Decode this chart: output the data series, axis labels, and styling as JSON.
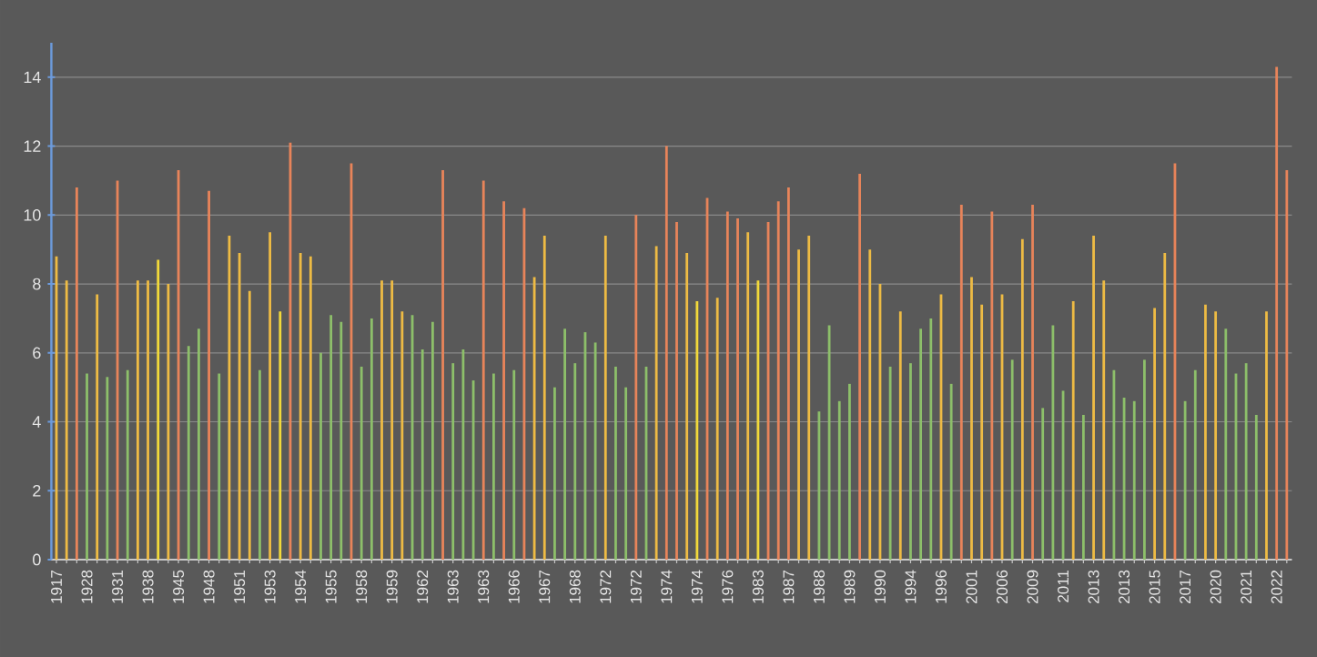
{
  "chart_data": {
    "type": "bar",
    "categories": [
      "1917",
      null,
      null,
      "1928",
      null,
      null,
      "1931",
      null,
      null,
      "1938",
      null,
      null,
      "1945",
      null,
      null,
      "1948",
      null,
      null,
      "1951",
      null,
      null,
      "1953",
      null,
      null,
      "1954",
      null,
      null,
      "1955",
      null,
      null,
      "1958",
      null,
      null,
      "1959",
      null,
      null,
      "1962",
      null,
      null,
      "1963",
      null,
      null,
      "1963",
      null,
      null,
      "1966",
      null,
      null,
      "1967",
      null,
      null,
      "1968",
      null,
      null,
      "1972",
      null,
      null,
      "1972",
      null,
      null,
      "1974",
      null,
      null,
      "1974",
      null,
      null,
      "1976",
      null,
      null,
      "1983",
      null,
      null,
      "1987",
      null,
      null,
      "1988",
      null,
      null,
      "1989",
      null,
      null,
      "1990",
      null,
      null,
      "1994",
      null,
      null,
      "1996",
      null,
      null,
      "2001",
      null,
      null,
      "2006",
      null,
      null,
      "2009",
      null,
      null,
      "2011",
      null,
      null,
      "2013",
      null,
      null,
      "2013",
      null,
      null,
      "2015",
      null,
      null,
      "2017",
      null,
      null,
      "2020",
      null,
      null,
      "2021",
      null,
      null,
      "2022",
      null
    ],
    "values": [
      8.8,
      8.1,
      10.8,
      5.4,
      7.7,
      5.3,
      11.0,
      5.5,
      8.1,
      8.1,
      8.7,
      8.0,
      11.3,
      6.2,
      6.7,
      10.7,
      5.4,
      9.4,
      8.9,
      7.8,
      5.5,
      9.5,
      7.2,
      12.1,
      8.9,
      8.8,
      6.0,
      7.1,
      6.9,
      11.5,
      5.6,
      7.0,
      8.1,
      8.1,
      7.2,
      7.1,
      6.1,
      6.9,
      11.3,
      5.7,
      6.1,
      5.2,
      11.0,
      5.4,
      10.4,
      5.5,
      10.2,
      8.2,
      9.4,
      5.0,
      6.7,
      5.7,
      6.6,
      6.3,
      9.4,
      5.6,
      5.0,
      10.0,
      5.6,
      9.1,
      12.0,
      9.8,
      8.9,
      7.5,
      10.5,
      7.6,
      10.1,
      9.9,
      9.5,
      8.1,
      9.8,
      10.4,
      10.8,
      9.0,
      9.4,
      4.3,
      6.8,
      4.6,
      5.1,
      11.2,
      9.0,
      8.0,
      5.6,
      7.2,
      5.7,
      6.7,
      7.0,
      7.7,
      5.1,
      10.3,
      8.2,
      7.4,
      10.1,
      7.7,
      5.8,
      9.3,
      10.3,
      4.4,
      6.8,
      4.9,
      7.5,
      4.2,
      9.4,
      8.1,
      5.5,
      4.7,
      4.6,
      5.8,
      7.3,
      8.9,
      11.5,
      4.6,
      5.5,
      7.4,
      7.2,
      6.7,
      5.4,
      5.7,
      4.2,
      7.2,
      14.3,
      11.3
    ],
    "colors": [
      "#eebb44",
      "#eebb44",
      "#e8845a",
      "#8dbf6a",
      "#eebb44",
      "#8dbf6a",
      "#e8845a",
      "#8dbf6a",
      "#eebb44",
      "#eebb44",
      "#f2d93a",
      "#eebb44",
      "#e8845a",
      "#8dbf6a",
      "#8dbf6a",
      "#e8845a",
      "#8dbf6a",
      "#eebb44",
      "#eebb44",
      "#eebb44",
      "#8dbf6a",
      "#eebb44",
      "#f2d93a",
      "#e8845a",
      "#eebb44",
      "#eebb44",
      "#8dbf6a",
      "#8dbf6a",
      "#8dbf6a",
      "#e8845a",
      "#8dbf6a",
      "#8dbf6a",
      "#eebb44",
      "#eebb44",
      "#eebb44",
      "#8dbf6a",
      "#8dbf6a",
      "#8dbf6a",
      "#e8845a",
      "#8dbf6a",
      "#8dbf6a",
      "#8dbf6a",
      "#e8845a",
      "#8dbf6a",
      "#e8845a",
      "#8dbf6a",
      "#e8845a",
      "#eebb44",
      "#eebb44",
      "#8dbf6a",
      "#8dbf6a",
      "#8dbf6a",
      "#8dbf6a",
      "#8dbf6a",
      "#eebb44",
      "#8dbf6a",
      "#8dbf6a",
      "#e8845a",
      "#8dbf6a",
      "#eebb44",
      "#e8845a",
      "#e8845a",
      "#eebb44",
      "#f2d93a",
      "#e8845a",
      "#eebb44",
      "#e8845a",
      "#e8845a",
      "#eebb44",
      "#f2d93a",
      "#e8845a",
      "#e8845a",
      "#e8845a",
      "#eebb44",
      "#eebb44",
      "#8dbf6a",
      "#8dbf6a",
      "#8dbf6a",
      "#8dbf6a",
      "#e8845a",
      "#eebb44",
      "#eebb44",
      "#8dbf6a",
      "#eebb44",
      "#8dbf6a",
      "#8dbf6a",
      "#8dbf6a",
      "#eebb44",
      "#8dbf6a",
      "#e8845a",
      "#eebb44",
      "#eebb44",
      "#e8845a",
      "#eebb44",
      "#8dbf6a",
      "#eebb44",
      "#e8845a",
      "#8dbf6a",
      "#8dbf6a",
      "#8dbf6a",
      "#eebb44",
      "#8dbf6a",
      "#eebb44",
      "#eebb44",
      "#8dbf6a",
      "#8dbf6a",
      "#8dbf6a",
      "#8dbf6a",
      "#eebb44",
      "#eebb44",
      "#e8845a",
      "#8dbf6a",
      "#8dbf6a",
      "#eebb44",
      "#eebb44",
      "#8dbf6a",
      "#8dbf6a",
      "#8dbf6a",
      "#8dbf6a",
      "#eebb44",
      "#e8845a",
      "#e8845a"
    ],
    "ylim": [
      0,
      15
    ],
    "yticks": [
      0,
      2,
      4,
      6,
      8,
      10,
      12,
      14
    ],
    "grid": "y"
  }
}
